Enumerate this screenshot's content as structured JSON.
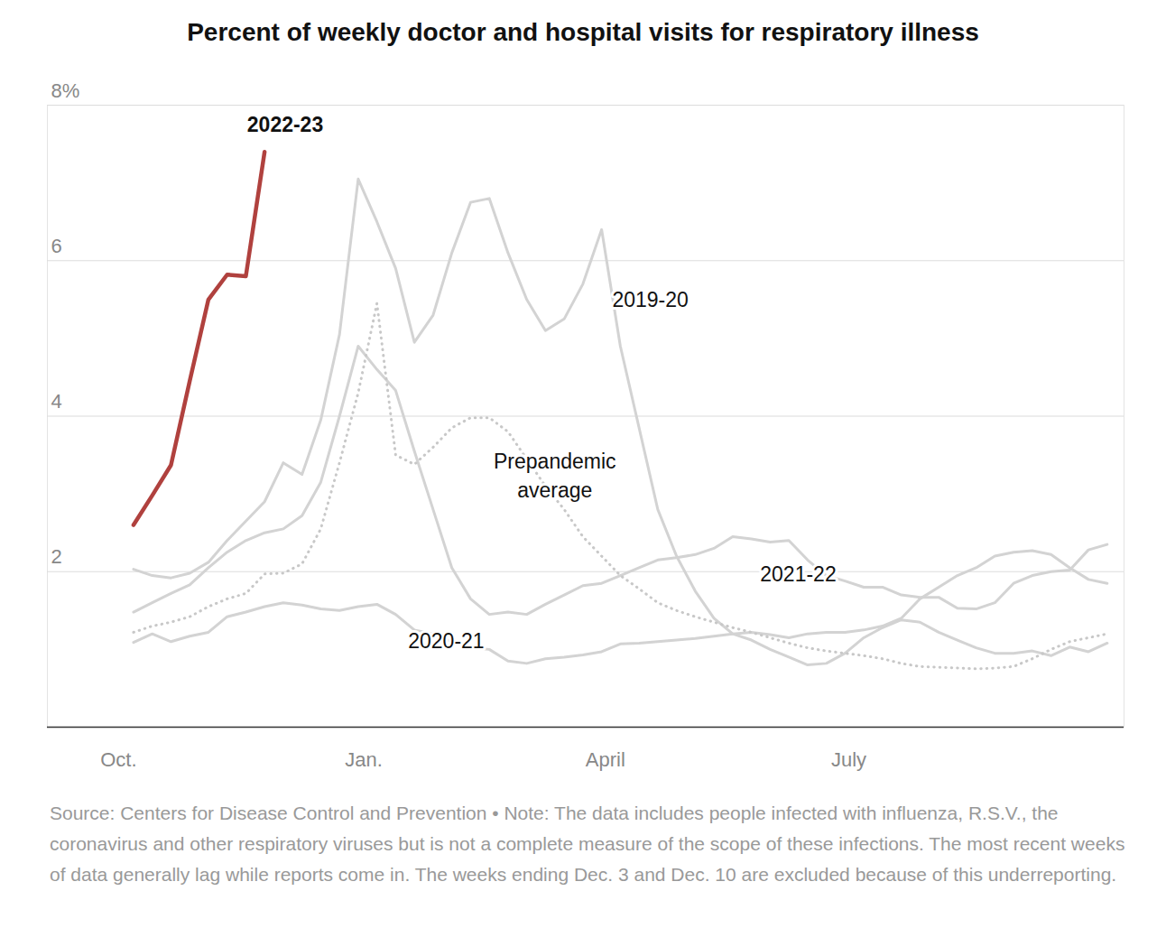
{
  "chart_data": {
    "type": "line",
    "title": "Percent of weekly doctor and hospital visits for respiratory illness",
    "caption": "Source: Centers for Disease Control and Prevention • Note: The data includes people infected with influenza, R.S.V., the coronavirus and other respiratory viruses but is not a complete measure of the scope of these infections. The most recent weeks of data generally lag while reports come in. The weeks ending Dec. 3 and Dec. 10 are excluded because of this underreporting.",
    "x": [
      1,
      2,
      3,
      4,
      5,
      6,
      7,
      8,
      9,
      10,
      11,
      12,
      13,
      14,
      15,
      16,
      17,
      18,
      19,
      20,
      21,
      22,
      23,
      24,
      25,
      26,
      27,
      28,
      29,
      30,
      31,
      32,
      33,
      34,
      35,
      36,
      37,
      38,
      39,
      40,
      41,
      42,
      43,
      44,
      45,
      46,
      47,
      48,
      49,
      50,
      51,
      52,
      53
    ],
    "xlim": [
      -3.6,
      53.9
    ],
    "xticks": [
      {
        "value": 0.2,
        "label": "Oct."
      },
      {
        "value": 13.3,
        "label": "Jan."
      },
      {
        "value": 26.2,
        "label": "April"
      },
      {
        "value": 39.2,
        "label": "July"
      }
    ],
    "ylim": [
      0,
      8
    ],
    "yticks": [
      2,
      4,
      6,
      {
        "value": 8,
        "label": "8%"
      }
    ],
    "grid": true,
    "series": [
      {
        "name": "2019-20",
        "color": "#d3d3d3",
        "line_style": "solid",
        "values": [
          2.03,
          1.95,
          1.92,
          1.98,
          2.12,
          2.4,
          2.65,
          2.9,
          3.4,
          3.25,
          3.95,
          5.05,
          7.05,
          6.5,
          5.9,
          4.95,
          5.3,
          6.1,
          6.75,
          6.8,
          6.1,
          5.5,
          5.1,
          5.25,
          5.7,
          6.4,
          4.9,
          3.85,
          2.8,
          2.2,
          1.75,
          1.4,
          1.2,
          1.12,
          1.0,
          0.9,
          0.8,
          0.82,
          0.95,
          1.15,
          1.28,
          1.38,
          1.35,
          1.22,
          1.12,
          1.02,
          0.95,
          0.95,
          0.98,
          0.92,
          1.03,
          0.97,
          1.08
        ]
      },
      {
        "name": "2020-21",
        "color": "#d3d3d3",
        "line_style": "solid",
        "values": [
          1.09,
          1.2,
          1.1,
          1.17,
          1.22,
          1.42,
          1.48,
          1.55,
          1.6,
          1.57,
          1.52,
          1.5,
          1.55,
          1.58,
          1.45,
          1.25,
          1.2,
          1.1,
          1.02,
          1.0,
          0.85,
          0.82,
          0.88,
          0.9,
          0.93,
          0.97,
          1.07,
          1.08,
          1.1,
          1.12,
          1.14,
          1.17,
          1.2,
          1.22,
          1.19,
          1.15,
          1.2,
          1.22,
          1.22,
          1.25,
          1.3,
          1.4,
          1.65,
          1.8,
          1.95,
          2.05,
          2.2,
          2.25,
          2.27,
          2.22,
          2.05,
          1.9,
          1.85
        ]
      },
      {
        "name": "2021-22",
        "color": "#d3d3d3",
        "line_style": "solid",
        "values": [
          1.48,
          1.6,
          1.72,
          1.83,
          2.05,
          2.25,
          2.4,
          2.5,
          2.55,
          2.72,
          3.15,
          4.0,
          4.9,
          4.6,
          4.33,
          3.55,
          2.8,
          2.05,
          1.65,
          1.45,
          1.48,
          1.45,
          1.58,
          1.7,
          1.82,
          1.85,
          1.95,
          2.05,
          2.15,
          2.18,
          2.22,
          2.3,
          2.45,
          2.42,
          2.38,
          2.4,
          2.15,
          1.95,
          1.88,
          1.8,
          1.8,
          1.7,
          1.67,
          1.67,
          1.53,
          1.52,
          1.6,
          1.85,
          1.95,
          2.0,
          2.02,
          2.28,
          2.35
        ]
      },
      {
        "name": "Prepandemic average",
        "color": "#c8c8c8",
        "line_style": "dotted",
        "values": [
          1.22,
          1.3,
          1.35,
          1.42,
          1.55,
          1.65,
          1.72,
          1.97,
          1.98,
          2.1,
          2.55,
          3.4,
          4.3,
          5.45,
          3.5,
          3.38,
          3.6,
          3.85,
          3.98,
          3.98,
          3.8,
          3.45,
          3.1,
          2.8,
          2.45,
          2.2,
          1.95,
          1.78,
          1.6,
          1.5,
          1.42,
          1.35,
          1.28,
          1.22,
          1.15,
          1.08,
          1.02,
          0.98,
          0.95,
          0.92,
          0.88,
          0.82,
          0.78,
          0.77,
          0.76,
          0.75,
          0.76,
          0.78,
          0.88,
          1.0,
          1.1,
          1.15,
          1.2
        ]
      },
      {
        "name": "2022-23",
        "color": "#b0413e",
        "line_style": "solid",
        "values": [
          2.6,
          2.98,
          3.37,
          4.45,
          5.5,
          5.82,
          5.8,
          7.4,
          null,
          null,
          null,
          null,
          null,
          null,
          null,
          null,
          null,
          null,
          null,
          null,
          null,
          null,
          null,
          null,
          null,
          null,
          null,
          null,
          null,
          null,
          null,
          null,
          null,
          null,
          null,
          null,
          null,
          null,
          null,
          null,
          null,
          null,
          null,
          null,
          null,
          null,
          null,
          null,
          null,
          null,
          null,
          null,
          null
        ]
      }
    ],
    "annotations": [
      {
        "text": "2022-23",
        "x": 9.1,
        "y": 7.78
      },
      {
        "text": "2019-20",
        "x": 28.6,
        "y": 5.52
      },
      {
        "text": "Prepandemic\naverage",
        "x": 23.5,
        "y": 3.26
      },
      {
        "text": "2021-22",
        "x": 36.5,
        "y": 2.0
      },
      {
        "text": "2020-21",
        "x": 17.7,
        "y": 1.13
      }
    ]
  }
}
